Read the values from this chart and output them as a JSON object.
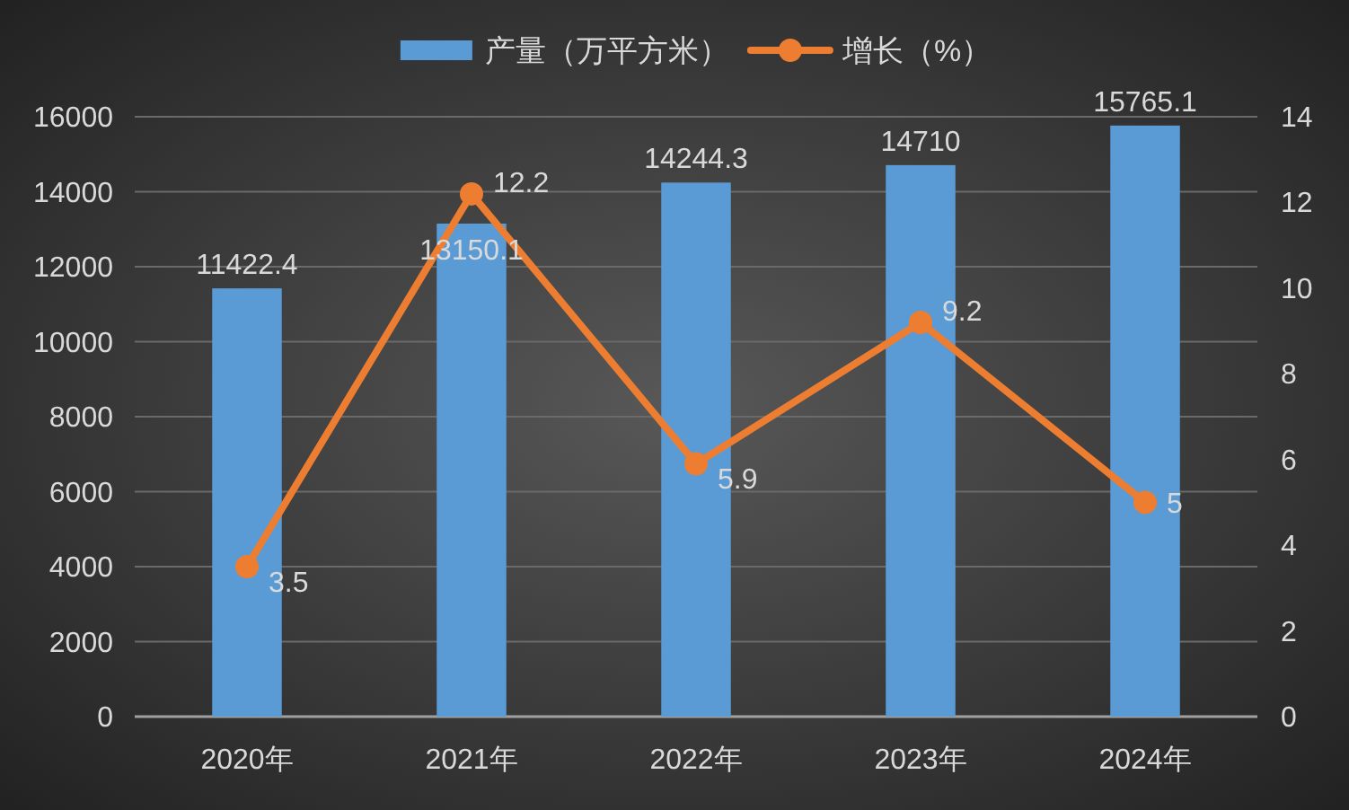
{
  "chart_data": {
    "type": "bar",
    "categories": [
      "2020年",
      "2021年",
      "2022年",
      "2023年",
      "2024年"
    ],
    "series": [
      {
        "name": "产量（万平方米）",
        "color": "#5b9bd5",
        "values": [
          11422.4,
          13150.1,
          14244.3,
          14710,
          15765.1
        ]
      },
      {
        "name": "增长（%）",
        "type": "line",
        "axis": "y2",
        "color": "#ed7d31",
        "values": [
          3.5,
          12.2,
          5.9,
          9.2,
          5
        ]
      }
    ],
    "ylim": [
      0,
      16000
    ],
    "yticks": [
      0,
      2000,
      4000,
      6000,
      8000,
      10000,
      12000,
      14000,
      16000
    ],
    "y2lim": [
      0,
      14
    ],
    "y2ticks": [
      0,
      2,
      4,
      6,
      8,
      10,
      12,
      14
    ],
    "grid": "y",
    "legend": "top",
    "data_labels": true,
    "marker": "circle"
  }
}
